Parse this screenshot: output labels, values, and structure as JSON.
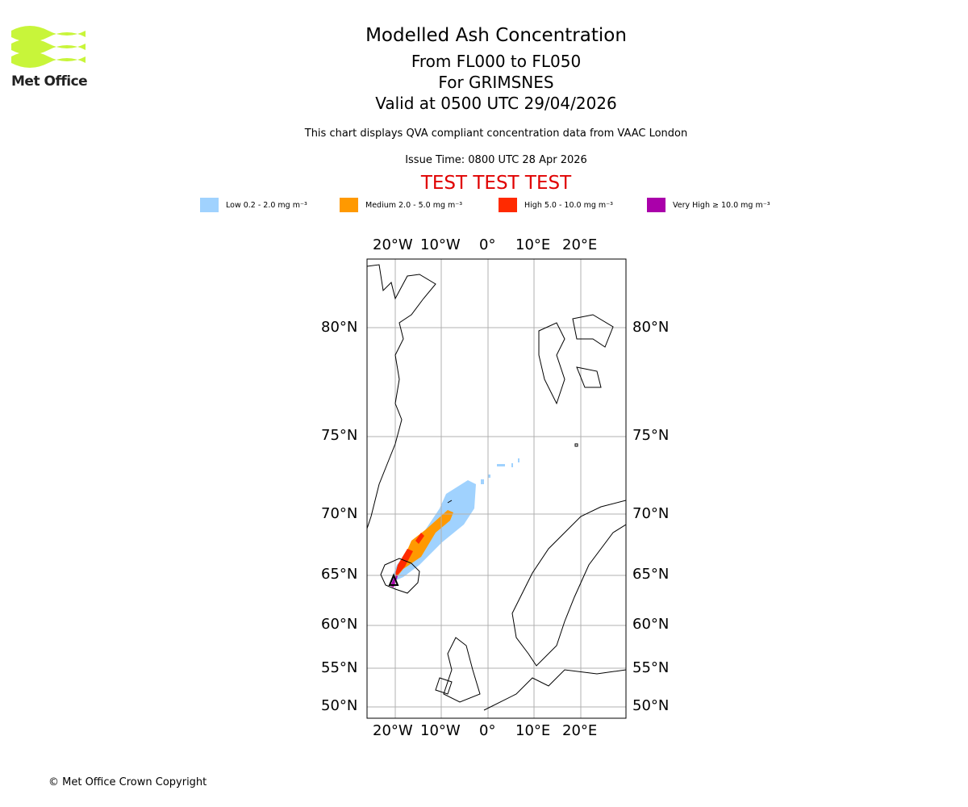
{
  "logo": {
    "text": "Met Office",
    "color": "#c8f53a"
  },
  "title": {
    "main": "Modelled Ash Concentration",
    "levels": "From FL000 to FL050",
    "volcano": "For GRIMSNES",
    "valid": "Valid at 0500 UTC 29/04/2026"
  },
  "subtitle": "This chart displays QVA compliant concentration data from VAAC London",
  "issue_time": "Issue Time: 0800 UTC 28 Apr 2026",
  "test_banner": "TEST TEST TEST",
  "legend": [
    {
      "label": "Low 0.2 - 2.0 mg m⁻³",
      "color": "#a0d2fe"
    },
    {
      "label": "Medium 2.0 - 5.0 mg m⁻³",
      "color": "#ff9900"
    },
    {
      "label": "High 5.0 - 10.0 mg m⁻³",
      "color": "#ff2a00"
    },
    {
      "label": "Very High ≥ 10.0 mg m⁻³",
      "color": "#aa00aa"
    }
  ],
  "map": {
    "lon_labels": [
      "20°W",
      "10°W",
      "0°",
      "10°E",
      "20°E"
    ],
    "lat_labels": [
      "80°N",
      "75°N",
      "70°N",
      "65°N",
      "60°N",
      "55°N",
      "50°N"
    ],
    "volcano_marker": "triangle"
  },
  "copyright": "© Met Office Crown Copyright"
}
